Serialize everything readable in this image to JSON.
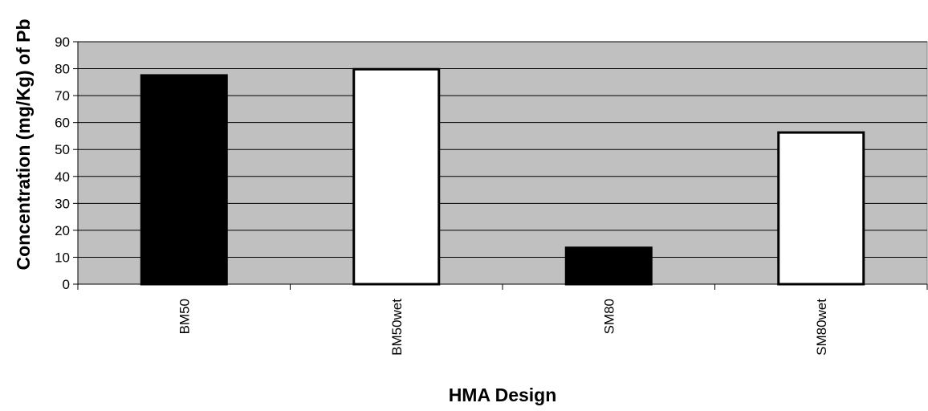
{
  "chart_data": {
    "type": "bar",
    "title": "",
    "xlabel": "HMA Design",
    "ylabel": "Concentration (mg/Kg) of Pb",
    "categories": [
      "BM50",
      "BM50wet",
      "SM80",
      "SM80wet"
    ],
    "values": [
      77.5,
      79.8,
      13.5,
      56.3
    ],
    "bar_colors": [
      "#000000",
      "#ffffff",
      "#000000",
      "#ffffff"
    ],
    "ylim": [
      0,
      90
    ],
    "yticks": [
      "0",
      "10",
      "20",
      "30",
      "40",
      "50",
      "60",
      "70",
      "80",
      "90"
    ],
    "grid": true,
    "legend": "none",
    "plot_background": "#c0c0c0",
    "bar_outline": "#000000"
  }
}
